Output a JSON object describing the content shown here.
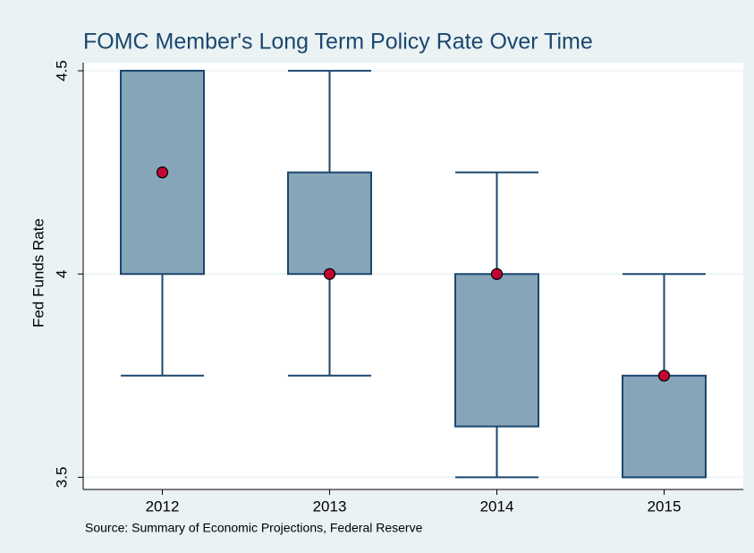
{
  "chart_data": {
    "type": "box",
    "title": "FOMC Member's Long Term Policy Rate Over Time",
    "y_label": "Fed Funds Rate",
    "note": "Source: Summary of Economic Projections, Federal Reserve",
    "categories": [
      "2012",
      "2013",
      "2014",
      "2015"
    ],
    "whisker_low": [
      3.75,
      3.75,
      3.5,
      3.5
    ],
    "q1": [
      4.0,
      4.0,
      3.625,
      3.5
    ],
    "q3": [
      4.5,
      4.25,
      4.0,
      3.75
    ],
    "whisker_high": [
      4.5,
      4.5,
      4.25,
      4.0
    ],
    "markers": [
      4.25,
      4.0,
      4.0,
      3.75
    ],
    "box_color": "#86a5b9",
    "line_color": "#1a476f",
    "marker_color": "#c10534",
    "ylim": [
      3.47,
      4.52
    ],
    "yticks": [
      3.5,
      4,
      4.5
    ],
    "grid": true
  }
}
